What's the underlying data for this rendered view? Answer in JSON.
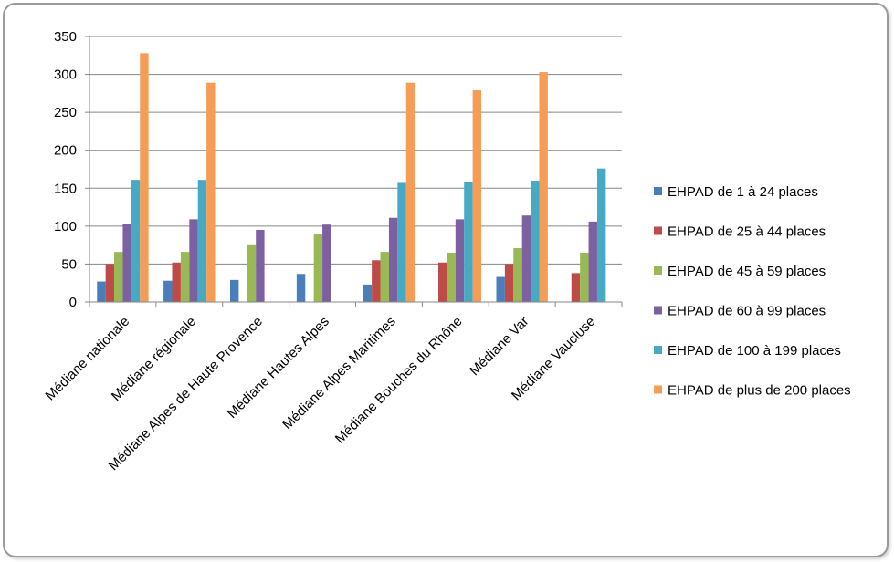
{
  "chart_data": {
    "type": "bar",
    "title": "",
    "xlabel": "",
    "ylabel": "",
    "ylim": [
      0,
      350
    ],
    "yticks": [
      0,
      50,
      100,
      150,
      200,
      250,
      300,
      350
    ],
    "grid": true,
    "legend_position": "right",
    "categories": [
      "Médiane nationale",
      "Médiane régionale",
      "Médiane Alpes de Haute Provence",
      "Médiane Hautes Alpes",
      "Médiane Alpes Maritimes",
      "Médiane Bouches du Rhône",
      "Médiane Var",
      "Médiane Vaucluse"
    ],
    "series": [
      {
        "name": "EHPAD de 1 à 24 places",
        "color": "#4A7EBB",
        "values": [
          27,
          28,
          29,
          37,
          23,
          null,
          33,
          null
        ]
      },
      {
        "name": "EHPAD de 25 à 44 places",
        "color": "#BE4B48",
        "values": [
          50,
          52,
          null,
          null,
          55,
          52,
          50,
          38
        ]
      },
      {
        "name": "EHPAD de 45 à 59 places",
        "color": "#98B954",
        "values": [
          66,
          66,
          76,
          89,
          66,
          65,
          71,
          65
        ]
      },
      {
        "name": "EHPAD de 60 à 99 places",
        "color": "#7D60A0",
        "values": [
          103,
          109,
          95,
          102,
          111,
          109,
          114,
          106
        ]
      },
      {
        "name": "EHPAD de 100 à 199 places",
        "color": "#46AAC5",
        "values": [
          161,
          161,
          null,
          null,
          157,
          158,
          160,
          176
        ]
      },
      {
        "name": "EHPAD de plus de 200 places",
        "color": "#F59D56",
        "values": [
          328,
          289,
          null,
          null,
          289,
          279,
          303,
          null
        ]
      }
    ]
  }
}
